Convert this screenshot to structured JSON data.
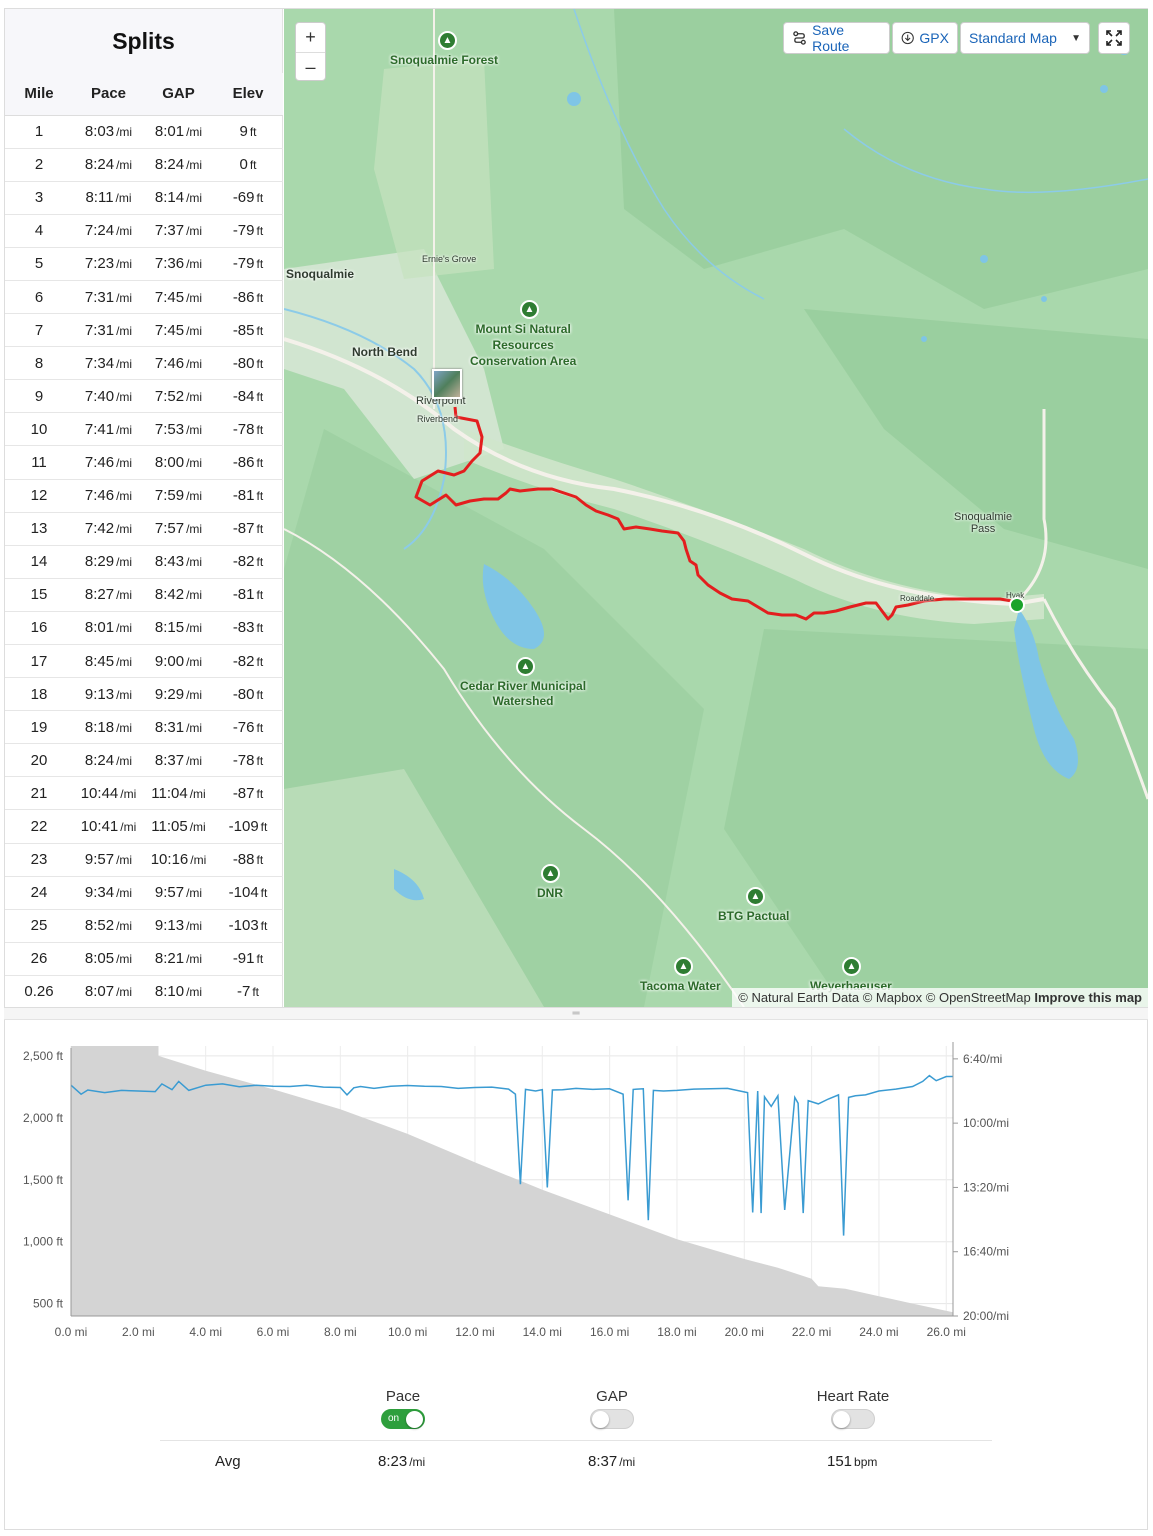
{
  "splits": {
    "title": "Splits",
    "headers": [
      "Mile",
      "Pace",
      "GAP",
      "Elev"
    ],
    "pace_unit": "/mi",
    "elev_unit": "ft",
    "rows": [
      {
        "mile": "1",
        "pace": "8:03",
        "gap": "8:01",
        "elev": "9"
      },
      {
        "mile": "2",
        "pace": "8:24",
        "gap": "8:24",
        "elev": "0"
      },
      {
        "mile": "3",
        "pace": "8:11",
        "gap": "8:14",
        "elev": "-69"
      },
      {
        "mile": "4",
        "pace": "7:24",
        "gap": "7:37",
        "elev": "-79"
      },
      {
        "mile": "5",
        "pace": "7:23",
        "gap": "7:36",
        "elev": "-79"
      },
      {
        "mile": "6",
        "pace": "7:31",
        "gap": "7:45",
        "elev": "-86"
      },
      {
        "mile": "7",
        "pace": "7:31",
        "gap": "7:45",
        "elev": "-85"
      },
      {
        "mile": "8",
        "pace": "7:34",
        "gap": "7:46",
        "elev": "-80"
      },
      {
        "mile": "9",
        "pace": "7:40",
        "gap": "7:52",
        "elev": "-84"
      },
      {
        "mile": "10",
        "pace": "7:41",
        "gap": "7:53",
        "elev": "-78"
      },
      {
        "mile": "11",
        "pace": "7:46",
        "gap": "8:00",
        "elev": "-86"
      },
      {
        "mile": "12",
        "pace": "7:46",
        "gap": "7:59",
        "elev": "-81"
      },
      {
        "mile": "13",
        "pace": "7:42",
        "gap": "7:57",
        "elev": "-87"
      },
      {
        "mile": "14",
        "pace": "8:29",
        "gap": "8:43",
        "elev": "-82"
      },
      {
        "mile": "15",
        "pace": "8:27",
        "gap": "8:42",
        "elev": "-81"
      },
      {
        "mile": "16",
        "pace": "8:01",
        "gap": "8:15",
        "elev": "-83"
      },
      {
        "mile": "17",
        "pace": "8:45",
        "gap": "9:00",
        "elev": "-82"
      },
      {
        "mile": "18",
        "pace": "9:13",
        "gap": "9:29",
        "elev": "-80"
      },
      {
        "mile": "19",
        "pace": "8:18",
        "gap": "8:31",
        "elev": "-76"
      },
      {
        "mile": "20",
        "pace": "8:24",
        "gap": "8:37",
        "elev": "-78"
      },
      {
        "mile": "21",
        "pace": "10:44",
        "gap": "11:04",
        "elev": "-87"
      },
      {
        "mile": "22",
        "pace": "10:41",
        "gap": "11:05",
        "elev": "-109"
      },
      {
        "mile": "23",
        "pace": "9:57",
        "gap": "10:16",
        "elev": "-88"
      },
      {
        "mile": "24",
        "pace": "9:34",
        "gap": "9:57",
        "elev": "-104"
      },
      {
        "mile": "25",
        "pace": "8:52",
        "gap": "9:13",
        "elev": "-103"
      },
      {
        "mile": "26",
        "pace": "8:05",
        "gap": "8:21",
        "elev": "-91"
      },
      {
        "mile": "0.26",
        "pace": "8:07",
        "gap": "8:10",
        "elev": "-7"
      }
    ]
  },
  "map": {
    "zoom_in": "+",
    "zoom_out": "–",
    "save_route": "Save Route",
    "gpx": "GPX",
    "map_style": "Standard Map",
    "labels": {
      "snoqualmie_forest": "Snoqualmie Forest",
      "snoqualmie": "Snoqualmie",
      "ernies_grove": "Ernie's Grove",
      "mount_si": "Mount Si Natural\nResources\nConservation Area",
      "north_bend": "North Bend",
      "riverpoint": "Riverpoint",
      "riverbend": "Riverbend",
      "snoqualmie_pass": "Snoqualmie\nPass",
      "roaddale": "Roaddale",
      "hyak": "Hyak",
      "cedar_river": "Cedar River Municipal\nWatershed",
      "dnr": "DNR",
      "btg": "BTG Pactual",
      "tacoma_water": "Tacoma Water",
      "weyerhaeuser": "Weyerhaeuser"
    },
    "attribution_prefix": "© Natural Earth Data © Mapbox © OpenStreetMap",
    "attribution_link": "Improve this map",
    "route_color": "#e31e1e",
    "water_color": "#7fc5e6",
    "land_color": "#a5d6a9"
  },
  "chart": {
    "elev_ticks": [
      "2,500 ft",
      "2,000 ft",
      "1,500 ft",
      "1,000 ft",
      "500 ft"
    ],
    "pace_ticks": [
      "6:40/mi",
      "10:00/mi",
      "13:20/mi",
      "16:40/mi",
      "20:00/mi"
    ],
    "x_ticks": [
      "0.0 mi",
      "2.0 mi",
      "4.0 mi",
      "6.0 mi",
      "8.0 mi",
      "10.0 mi",
      "12.0 mi",
      "14.0 mi",
      "16.0 mi",
      "18.0 mi",
      "20.0 mi",
      "22.0 mi",
      "24.0 mi",
      "26.0 mi"
    ]
  },
  "chart_data": {
    "type": "area",
    "xlabel": "",
    "ylabel": "",
    "xlim": [
      0,
      26.2
    ],
    "ylim": [
      400,
      2580
    ],
    "y2lim_pace_seconds": [
      360,
      1200
    ],
    "series": [
      {
        "kind": "area",
        "x": [
          0,
          2.6,
          2.6,
          4,
          6,
          8,
          10,
          12,
          14,
          16,
          18,
          20,
          21,
          22,
          22.2,
          23,
          24,
          25,
          26.2
        ],
        "values": [
          2580,
          2580,
          2500,
          2380,
          2230,
          2070,
          1870,
          1640,
          1420,
          1220,
          1020,
          860,
          790,
          700,
          640,
          620,
          560,
          500,
          430
        ]
      },
      {
        "kind": "line",
        "x": [
          0,
          0.3,
          0.5,
          1,
          1.5,
          2,
          2.5,
          2.7,
          3,
          3.2,
          3.5,
          4,
          4.5,
          5,
          5.5,
          6,
          6.5,
          7,
          7.5,
          8,
          8.2,
          8.4,
          8.6,
          9,
          9.5,
          10,
          10.5,
          11,
          11.5,
          12,
          12.5,
          13,
          13.2,
          13.35,
          13.5,
          13.8,
          14,
          14.15,
          14.3,
          14.6,
          15,
          15.5,
          16,
          16.4,
          16.55,
          16.7,
          17,
          17.15,
          17.3,
          17.6,
          18,
          18.5,
          19,
          19.5,
          20.1,
          20.25,
          20.4,
          20.5,
          20.6,
          20.8,
          21,
          21.2,
          21.5,
          21.6,
          21.75,
          21.9,
          22.2,
          22.5,
          22.8,
          22.95,
          23.1,
          23.3,
          23.6,
          24,
          24.5,
          25,
          25.3,
          25.5,
          25.7,
          26,
          26.2
        ],
        "values": [
          482,
          510,
          497,
          505,
          498,
          500,
          502,
          478,
          496,
          470,
          498,
          482,
          478,
          487,
          482,
          485,
          486,
          482,
          488,
          489,
          512,
          490,
          486,
          492,
          485,
          483,
          485,
          486,
          492,
          489,
          488,
          494,
          510,
          790,
          495,
          500,
          496,
          800,
          497,
          496,
          492,
          495,
          493,
          510,
          840,
          495,
          493,
          902,
          498,
          500,
          498,
          494,
          493,
          492,
          505,
          878,
          500,
          880,
          518,
          548,
          515,
          870,
          520,
          538,
          880,
          530,
          540,
          525,
          512,
          950,
          520,
          515,
          512,
          500,
          494,
          486,
          470,
          452,
          468,
          455,
          455
        ]
      }
    ]
  },
  "toggles": {
    "pace": {
      "label": "Pace",
      "state": "on"
    },
    "gap": {
      "label": "GAP",
      "state": "off"
    },
    "hr": {
      "label": "Heart Rate",
      "state": "off"
    }
  },
  "avg": {
    "label": "Avg",
    "pace": "8:23",
    "pace_unit": "/mi",
    "gap": "8:37",
    "gap_unit": "/mi",
    "hr": "151",
    "hr_unit": "bpm"
  }
}
